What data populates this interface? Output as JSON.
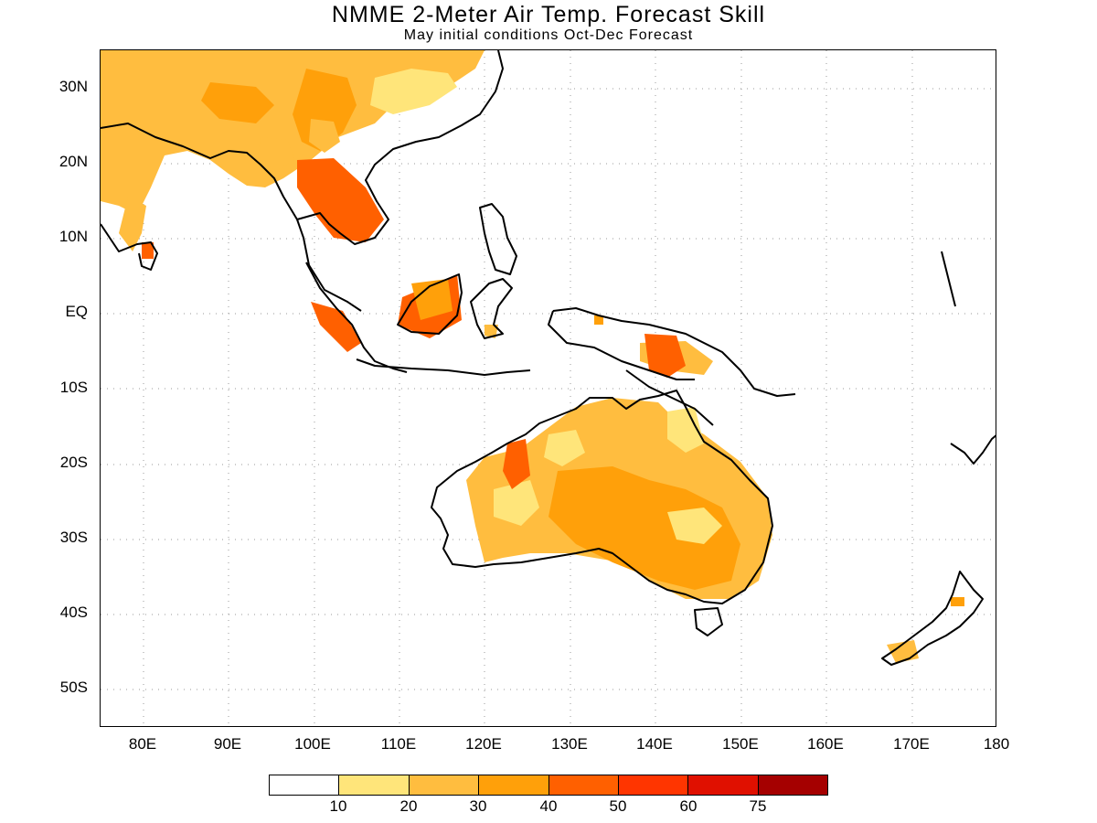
{
  "title": "NMME 2-Meter Air Temp. Forecast Skill",
  "subtitle": "May initial conditions  Oct-Dec Forecast",
  "map": {
    "lon_range": [
      75,
      180
    ],
    "lat_range": [
      -55,
      35
    ],
    "y_labels": [
      "30N",
      "20N",
      "10N",
      "EQ",
      "10S",
      "20S",
      "30S",
      "40S",
      "50S"
    ],
    "x_labels": [
      "80E",
      "90E",
      "100E",
      "110E",
      "120E",
      "130E",
      "140E",
      "150E",
      "160E",
      "170E",
      "180"
    ],
    "gridlines": "dotted"
  },
  "colorbar": {
    "colors": [
      "#ffffff",
      "#ffe57a",
      "#ffbd3f",
      "#ffa00a",
      "#ff6000",
      "#ff3500",
      "#e01000",
      "#a50000"
    ],
    "labels": [
      "10",
      "20",
      "30",
      "40",
      "50",
      "60",
      "75"
    ]
  }
}
